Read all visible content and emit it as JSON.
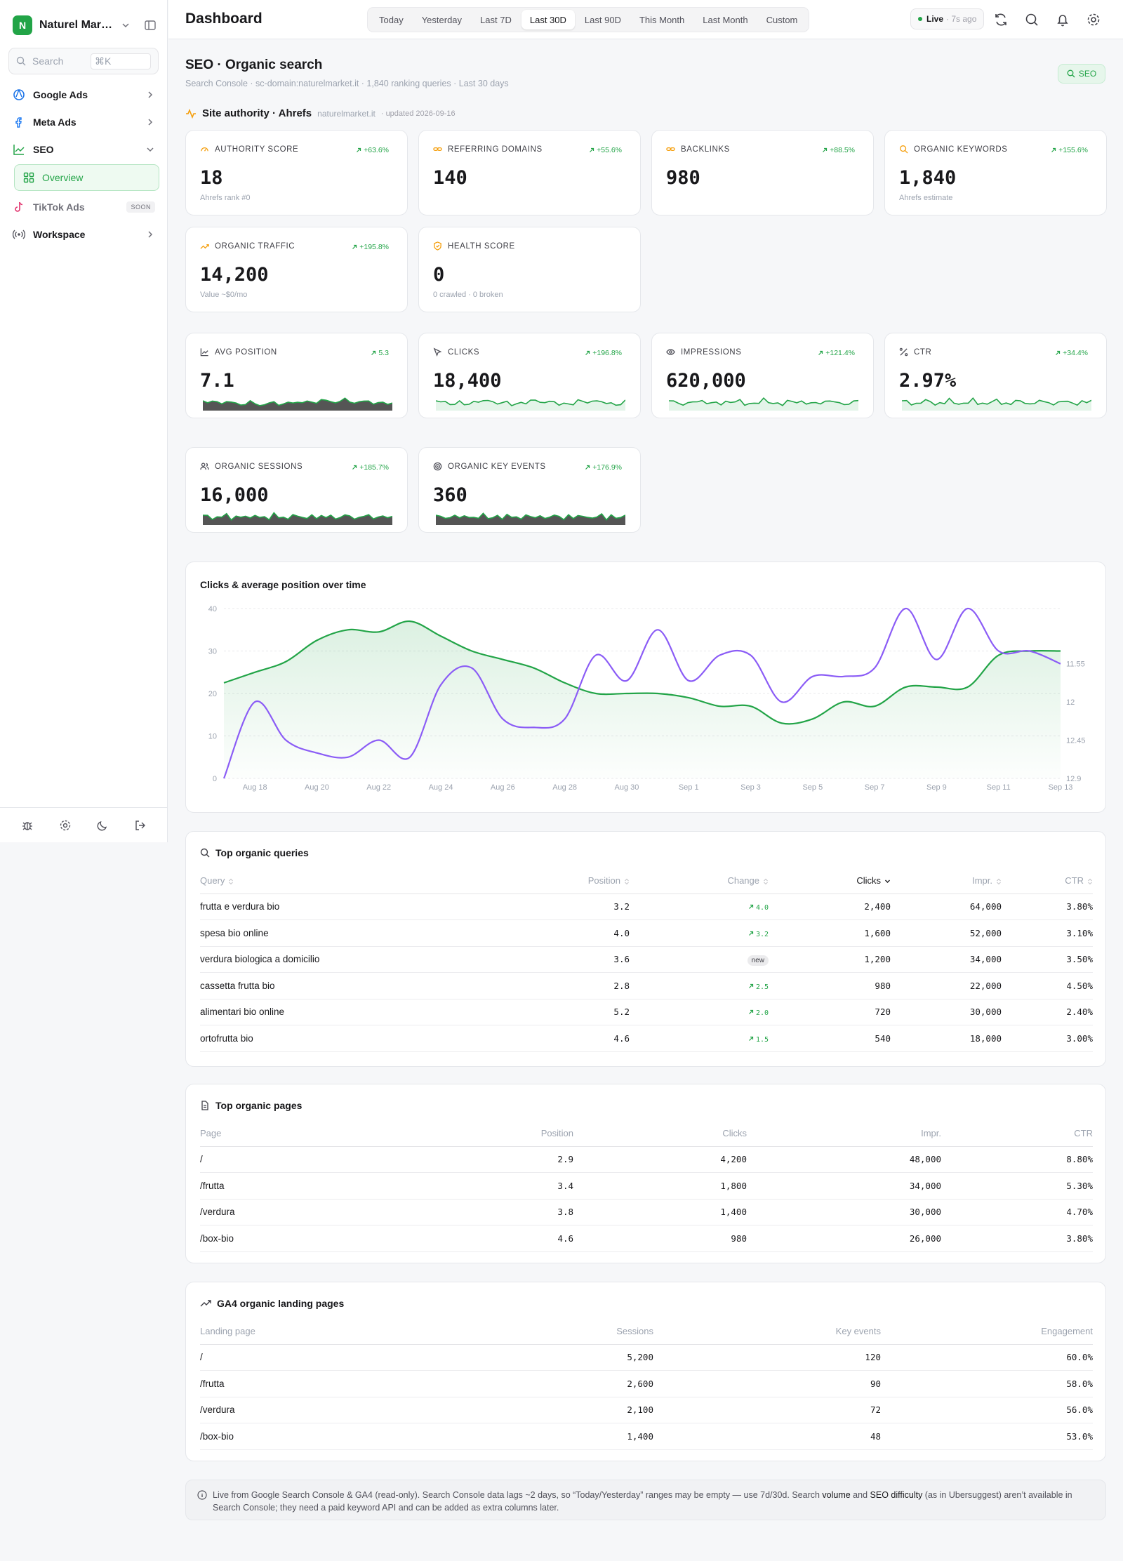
{
  "sidebar": {
    "brand": {
      "initial": "N",
      "name": "Naturel Market"
    },
    "search": {
      "placeholder": "Search",
      "shortcut": "⌘K"
    },
    "items": [
      {
        "label": "Google Ads",
        "icon": "google-ads-icon"
      },
      {
        "label": "Meta Ads",
        "icon": "meta-icon"
      },
      {
        "label": "SEO",
        "icon": "chart-line-icon"
      },
      {
        "label": "Overview",
        "icon": "grid-icon"
      },
      {
        "label": "TikTok Ads",
        "icon": "tiktok-icon",
        "badge": "SOON"
      },
      {
        "label": "Workspace",
        "icon": "broadcast-icon"
      }
    ]
  },
  "header": {
    "title": "Dashboard",
    "ranges": [
      "Today",
      "Yesterday",
      "Last 7D",
      "Last 30D",
      "Last 90D",
      "This Month",
      "Last Month",
      "Custom"
    ],
    "active_range": "Last 30D",
    "live": {
      "label": "Live",
      "ago": "· 7s ago"
    }
  },
  "section": {
    "title": "SEO · Organic search",
    "subtitle": "Search Console · sc-domain:naturelmarket.it · 1,840 ranking queries · Last 30 days",
    "badge": "SEO"
  },
  "authority": {
    "title": "Site authority · Ahrefs",
    "domain": "naturelmarket.it",
    "updated": "· updated 2026-09-16"
  },
  "kpis": [
    {
      "label": "AUTHORITY SCORE",
      "delta": "+63.6%",
      "value": "18",
      "sub": "Ahrefs rank #0",
      "icon": "gauge-icon"
    },
    {
      "label": "REFERRING DOMAINS",
      "delta": "+55.6%",
      "value": "140",
      "sub": "",
      "icon": "link-icon"
    },
    {
      "label": "BACKLINKS",
      "delta": "+88.5%",
      "value": "980",
      "sub": "",
      "icon": "link-icon"
    },
    {
      "label": "ORGANIC KEYWORDS",
      "delta": "+155.6%",
      "value": "1,840",
      "sub": "Ahrefs estimate",
      "icon": "search-icon"
    },
    {
      "label": "ORGANIC TRAFFIC",
      "delta": "+195.8%",
      "value": "14,200",
      "sub": "Value ~$0/mo",
      "icon": "trend-up-icon"
    },
    {
      "label": "HEALTH SCORE",
      "delta": "",
      "value": "0",
      "sub": "0 crawled · 0 broken",
      "icon": "shield-icon"
    }
  ],
  "gsc": [
    {
      "label": "AVG POSITION",
      "delta": "5.3",
      "value": "7.1",
      "icon": "chart-line-icon"
    },
    {
      "label": "CLICKS",
      "delta": "+196.8%",
      "value": "18,400",
      "icon": "cursor-icon"
    },
    {
      "label": "IMPRESSIONS",
      "delta": "+121.4%",
      "value": "620,000",
      "icon": "eye-icon"
    },
    {
      "label": "CTR",
      "delta": "+34.4%",
      "value": "2.97%",
      "icon": "percent-icon"
    },
    {
      "label": "ORGANIC SESSIONS",
      "delta": "+185.7%",
      "value": "16,000",
      "icon": "users-icon"
    },
    {
      "label": "ORGANIC KEY EVENTS",
      "delta": "+176.9%",
      "value": "360",
      "icon": "target-icon"
    }
  ],
  "colors": {
    "accent": "#22a447",
    "position_line": "#8b5cf6",
    "spark_fill": "#555555"
  },
  "chart_data": {
    "type": "line",
    "title": "Clicks & average position over time",
    "categories": [
      "Aug 17",
      "Aug 18",
      "Aug 19",
      "Aug 20",
      "Aug 21",
      "Aug 22",
      "Aug 23",
      "Aug 24",
      "Aug 25",
      "Aug 26",
      "Aug 27",
      "Aug 28",
      "Aug 29",
      "Aug 30",
      "Aug 31",
      "Sep 1",
      "Sep 2",
      "Sep 3",
      "Sep 4",
      "Sep 5",
      "Sep 6",
      "Sep 7",
      "Sep 8",
      "Sep 9",
      "Sep 10",
      "Sep 11",
      "Sep 12",
      "Sep 13"
    ],
    "x_tick_labels": [
      "Aug 18",
      "Aug 20",
      "Aug 22",
      "Aug 24",
      "Aug 26",
      "Aug 28",
      "Aug 30",
      "Sep 1",
      "Sep 3",
      "Sep 5",
      "Sep 7",
      "Sep 9",
      "Sep 11",
      "Sep 13"
    ],
    "series": [
      {
        "axis": "left",
        "color": "#22a447",
        "area": true,
        "values": [
          22.5,
          25,
          27.5,
          32.5,
          35,
          34.5,
          37,
          33.5,
          30,
          28,
          26,
          22.5,
          20,
          20,
          20,
          19,
          17,
          17,
          13,
          14,
          18,
          17,
          21.5,
          21.5,
          21.5,
          29,
          30,
          30
        ]
      },
      {
        "axis": "right",
        "color": "#8b5cf6",
        "values": [
          12.9,
          12.0,
          12.45,
          12.6,
          12.65,
          12.45,
          12.65,
          11.8,
          11.6,
          12.2,
          12.3,
          12.2,
          11.45,
          11.75,
          11.15,
          11.75,
          11.45,
          11.45,
          12.0,
          11.7,
          11.7,
          11.6,
          10.9,
          11.5,
          10.9,
          11.4,
          11.4,
          11.55
        ]
      }
    ],
    "y_left": {
      "ticks": [
        0,
        10,
        20,
        30,
        40
      ],
      "range": [
        0,
        40
      ]
    },
    "y_right": {
      "ticks": [
        11.55,
        12,
        12.45,
        12.9
      ],
      "range": [
        10.9,
        12.9
      ],
      "reversed": true
    },
    "grid": true
  },
  "queries": {
    "title": "Top organic queries",
    "columns": [
      "Query",
      "Position",
      "Change",
      "Clicks",
      "Impr.",
      "CTR"
    ],
    "rows": [
      {
        "q": "frutta e verdura bio",
        "pos": "3.2",
        "chg": "4.0",
        "clicks": "2,400",
        "impr": "64,000",
        "ctr": "3.80%"
      },
      {
        "q": "spesa bio online",
        "pos": "4.0",
        "chg": "3.2",
        "clicks": "1,600",
        "impr": "52,000",
        "ctr": "3.10%"
      },
      {
        "q": "verdura biologica a domicilio",
        "pos": "3.6",
        "chg": "new",
        "clicks": "1,200",
        "impr": "34,000",
        "ctr": "3.50%"
      },
      {
        "q": "cassetta frutta bio",
        "pos": "2.8",
        "chg": "2.5",
        "clicks": "980",
        "impr": "22,000",
        "ctr": "4.50%"
      },
      {
        "q": "alimentari bio online",
        "pos": "5.2",
        "chg": "2.0",
        "clicks": "720",
        "impr": "30,000",
        "ctr": "2.40%"
      },
      {
        "q": "ortofrutta bio",
        "pos": "4.6",
        "chg": "1.5",
        "clicks": "540",
        "impr": "18,000",
        "ctr": "3.00%"
      }
    ]
  },
  "pages": {
    "title": "Top organic pages",
    "columns": [
      "Page",
      "Position",
      "Clicks",
      "Impr.",
      "CTR"
    ],
    "rows": [
      {
        "p": "/",
        "pos": "2.9",
        "clicks": "4,200",
        "impr": "48,000",
        "ctr": "8.80%"
      },
      {
        "p": "/frutta",
        "pos": "3.4",
        "clicks": "1,800",
        "impr": "34,000",
        "ctr": "5.30%"
      },
      {
        "p": "/verdura",
        "pos": "3.8",
        "clicks": "1,400",
        "impr": "30,000",
        "ctr": "4.70%"
      },
      {
        "p": "/box-bio",
        "pos": "4.6",
        "clicks": "980",
        "impr": "26,000",
        "ctr": "3.80%"
      }
    ]
  },
  "landing": {
    "title": "GA4 organic landing pages",
    "columns": [
      "Landing page",
      "Sessions",
      "Key events",
      "Engagement"
    ],
    "rows": [
      {
        "p": "/",
        "s": "5,200",
        "k": "120",
        "e": "60.0%"
      },
      {
        "p": "/frutta",
        "s": "2,600",
        "k": "90",
        "e": "58.0%"
      },
      {
        "p": "/verdura",
        "s": "2,100",
        "k": "72",
        "e": "56.0%"
      },
      {
        "p": "/box-bio",
        "s": "1,400",
        "k": "48",
        "e": "53.0%"
      }
    ]
  },
  "note": {
    "before": "Live from Google Search Console & GA4 (read-only). Search Console data lags ~2 days, so “Today/Yesterday” ranges may be empty — use 7d/30d. Search ",
    "k1": "volume",
    "mid": " and ",
    "k2": "SEO difficulty",
    "after": " (as in Ubersuggest) aren’t available in Search Console; they need a paid keyword API and can be added as extra columns later."
  }
}
